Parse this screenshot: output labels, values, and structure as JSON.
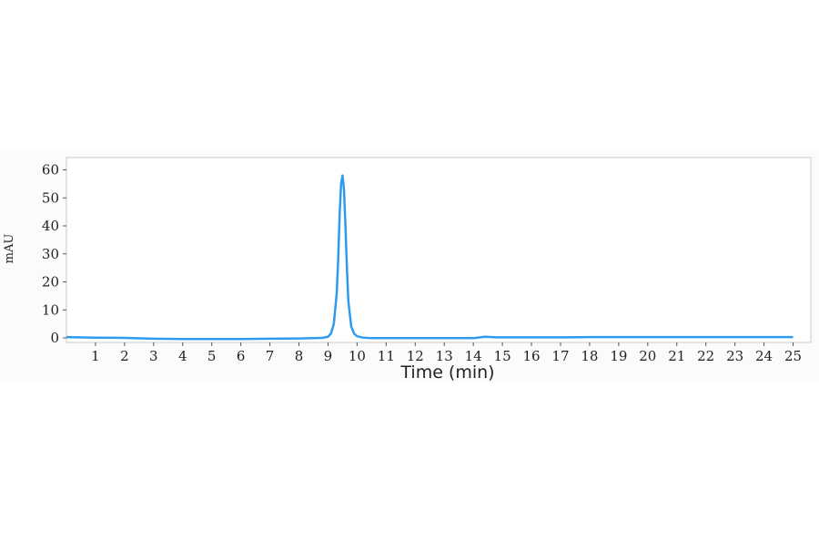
{
  "chart_data": {
    "type": "line",
    "title": "",
    "xlabel": "Time (min)",
    "ylabel": "mAU",
    "xlim": [
      0,
      25
    ],
    "ylim": [
      -2,
      62
    ],
    "x_ticks": [
      1,
      2,
      3,
      4,
      5,
      6,
      7,
      8,
      9,
      10,
      11,
      12,
      13,
      14,
      15,
      16,
      17,
      18,
      19,
      20,
      21,
      22,
      23,
      24,
      25
    ],
    "y_ticks": [
      0,
      10,
      20,
      30,
      40,
      50,
      60
    ],
    "grid": false,
    "legend": "none",
    "line_color": "#2f9bef",
    "series": [
      {
        "x": [
          0.0,
          1.0,
          2.0,
          3.0,
          4.0,
          5.0,
          6.0,
          7.0,
          8.0,
          8.8,
          9.0,
          9.1,
          9.2,
          9.3,
          9.35,
          9.4,
          9.45,
          9.5,
          9.55,
          9.6,
          9.65,
          9.7,
          9.8,
          9.9,
          10.0,
          10.2,
          10.5,
          11.0,
          12.0,
          13.0,
          14.0,
          14.4,
          14.8,
          15.0,
          16.0,
          17.0,
          18.0,
          19.0,
          20.0,
          21.0,
          22.0,
          23.0,
          24.0,
          25.0
        ],
        "y": [
          0.3,
          0.1,
          0.0,
          -0.3,
          -0.4,
          -0.4,
          -0.4,
          -0.3,
          -0.2,
          0.0,
          0.4,
          1.5,
          5.0,
          16.0,
          28.0,
          44.0,
          55.0,
          58.0,
          53.0,
          40.0,
          25.0,
          13.0,
          4.0,
          1.5,
          0.6,
          0.1,
          -0.1,
          -0.1,
          -0.1,
          -0.1,
          -0.1,
          0.4,
          0.2,
          0.2,
          0.2,
          0.2,
          0.3,
          0.3,
          0.3,
          0.3,
          0.3,
          0.3,
          0.3,
          0.3
        ]
      }
    ]
  }
}
